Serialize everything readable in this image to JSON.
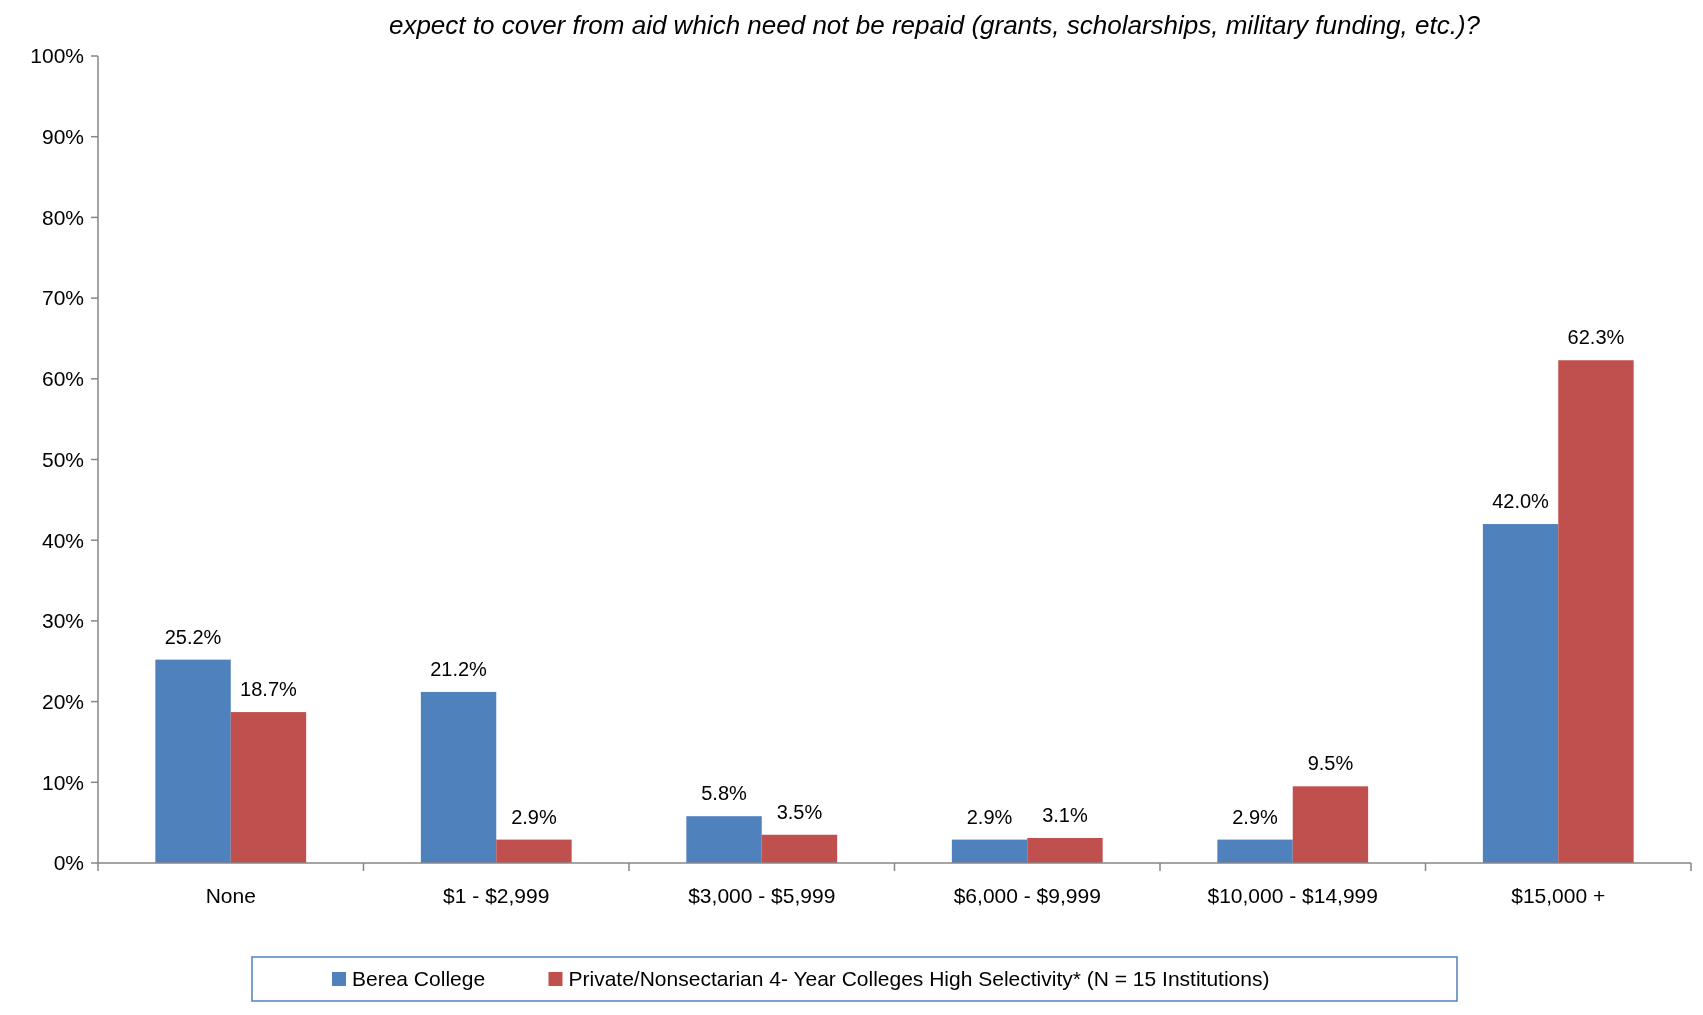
{
  "chart_data": {
    "type": "bar",
    "title": "expect to cover from aid which need not be repaid (grants, scholarships, military funding, etc.)?",
    "categories": [
      "None",
      "$1 - $2,999",
      "$3,000 - $5,999",
      "$6,000 - $9,999",
      "$10,000 - $14,999",
      "$15,000 +"
    ],
    "series": [
      {
        "name": "Berea College",
        "color": "#4f81bd",
        "values": [
          25.2,
          21.2,
          5.8,
          2.9,
          2.9,
          42.0
        ],
        "value_labels": [
          "25.2%",
          "21.2%",
          "5.8%",
          "2.9%",
          "2.9%",
          "42.0%"
        ]
      },
      {
        "name": "Private/Nonsectarian 4- Year Colleges High Selectivity* (N = 15 Institutions)",
        "color": "#c0504d",
        "values": [
          18.7,
          2.9,
          3.5,
          3.1,
          9.5,
          62.3
        ],
        "value_labels": [
          "18.7%",
          "2.9%",
          "3.5%",
          "3.1%",
          "9.5%",
          "62.3%"
        ]
      }
    ],
    "ylim": [
      0,
      100
    ],
    "yticks": [
      {
        "value": 0,
        "label": "0%"
      },
      {
        "value": 10,
        "label": "10%"
      },
      {
        "value": 20,
        "label": "20%"
      },
      {
        "value": 30,
        "label": "30%"
      },
      {
        "value": 40,
        "label": "40%"
      },
      {
        "value": 50,
        "label": "50%"
      },
      {
        "value": 60,
        "label": "60%"
      },
      {
        "value": 70,
        "label": "70%"
      },
      {
        "value": 80,
        "label": "80%"
      },
      {
        "value": 90,
        "label": "90%"
      },
      {
        "value": 100,
        "label": "100%"
      }
    ],
    "legend": "bottom"
  }
}
